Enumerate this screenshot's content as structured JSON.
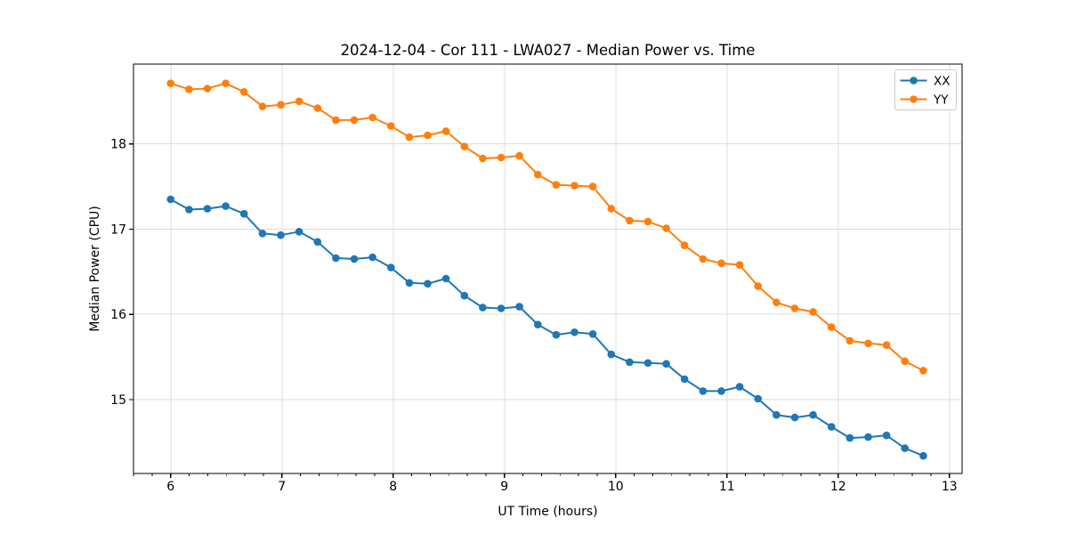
{
  "chart_data": {
    "type": "line",
    "title": "2024-12-04 - Cor 111 - LWA027 - Median Power vs. Time",
    "xlabel": "UT Time (hours)",
    "ylabel": "Median Power (CPU)",
    "xlim": [
      5.666,
      13.114
    ],
    "ylim": [
      14.133,
      18.937
    ],
    "xticks": [
      6,
      7,
      8,
      9,
      10,
      11,
      12,
      13
    ],
    "yticks": [
      15,
      16,
      17,
      18
    ],
    "x_minor_divisions": 6,
    "grid": true,
    "grid_color": "#dcdcdc",
    "spine_color": "#000000",
    "background_color": "#ffffff",
    "legend": {
      "position": "upper right",
      "border_color": "#cccccc"
    },
    "x": [
      6.0,
      6.165,
      6.33,
      6.495,
      6.66,
      6.825,
      6.99,
      7.155,
      7.32,
      7.485,
      7.65,
      7.815,
      7.98,
      8.145,
      8.31,
      8.475,
      8.64,
      8.805,
      8.97,
      9.135,
      9.3,
      9.465,
      9.63,
      9.795,
      9.96,
      10.125,
      10.29,
      10.455,
      10.62,
      10.785,
      10.95,
      11.115,
      11.28,
      11.445,
      11.61,
      11.775,
      11.94,
      12.105,
      12.27,
      12.435,
      12.6,
      12.765
    ],
    "series": [
      {
        "name": "XX",
        "color": "#1f77b4",
        "marker": "circle",
        "values": [
          17.35,
          17.23,
          17.24,
          17.27,
          17.18,
          16.95,
          16.93,
          16.97,
          16.85,
          16.66,
          16.65,
          16.67,
          16.55,
          16.37,
          16.36,
          16.42,
          16.22,
          16.08,
          16.07,
          16.09,
          15.88,
          15.76,
          15.79,
          15.77,
          15.53,
          15.44,
          15.43,
          15.42,
          15.24,
          15.1,
          15.1,
          15.15,
          15.01,
          14.82,
          14.79,
          14.82,
          14.68,
          14.55,
          14.56,
          14.58,
          14.43,
          14.34
        ]
      },
      {
        "name": "YY",
        "color": "#ff7f0e",
        "marker": "circle",
        "values": [
          18.71,
          18.64,
          18.65,
          18.71,
          18.61,
          18.44,
          18.46,
          18.5,
          18.42,
          18.28,
          18.28,
          18.31,
          18.21,
          18.08,
          18.1,
          18.15,
          17.97,
          17.83,
          17.84,
          17.86,
          17.64,
          17.52,
          17.51,
          17.5,
          17.24,
          17.1,
          17.09,
          17.01,
          16.81,
          16.65,
          16.6,
          16.58,
          16.33,
          16.14,
          16.07,
          16.03,
          15.85,
          15.69,
          15.66,
          15.64,
          15.45,
          15.34
        ]
      }
    ]
  }
}
